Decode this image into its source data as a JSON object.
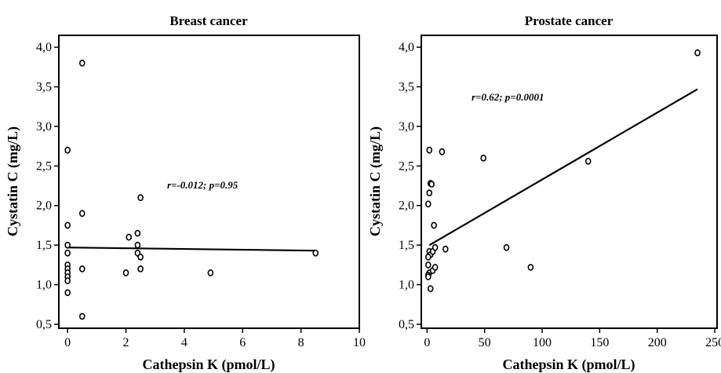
{
  "chart_data": [
    {
      "type": "scatter",
      "title": "Breast cancer",
      "xlabel": "Cathepsin K (pmol/L)",
      "ylabel": "Cystatin C (mg/L)",
      "xlim": [
        -0.3,
        10
      ],
      "ylim": [
        0.45,
        4.15
      ],
      "xticks": [
        0,
        2,
        4,
        6,
        8,
        10
      ],
      "xtick_labels": [
        "0",
        "2",
        "4",
        "6",
        "8",
        "10"
      ],
      "yticks": [
        0.5,
        1.0,
        1.5,
        2.0,
        2.5,
        3.0,
        3.5,
        4.0
      ],
      "ytick_labels": [
        "0,5",
        "1,0",
        "1,5",
        "2,0",
        "2,5",
        "3,0",
        "3,5",
        "4,0"
      ],
      "grid": false,
      "annotation": "r=-0.012; p=0.95",
      "regression": {
        "x": [
          0,
          8.5
        ],
        "y": [
          1.47,
          1.43
        ]
      },
      "points": [
        [
          0,
          2.7
        ],
        [
          0,
          1.75
        ],
        [
          0,
          1.5
        ],
        [
          0,
          1.4
        ],
        [
          0,
          1.25
        ],
        [
          0,
          1.2
        ],
        [
          0,
          1.15
        ],
        [
          0,
          1.1
        ],
        [
          0,
          1.05
        ],
        [
          0,
          0.9
        ],
        [
          0.5,
          3.8
        ],
        [
          0.5,
          1.9
        ],
        [
          0.5,
          1.2
        ],
        [
          0.5,
          0.6
        ],
        [
          2.0,
          1.15
        ],
        [
          2.1,
          1.6
        ],
        [
          2.4,
          1.65
        ],
        [
          2.4,
          1.5
        ],
        [
          2.4,
          1.4
        ],
        [
          2.5,
          2.1
        ],
        [
          2.5,
          1.35
        ],
        [
          2.5,
          1.2
        ],
        [
          4.9,
          1.15
        ],
        [
          8.5,
          1.4
        ]
      ]
    },
    {
      "type": "scatter",
      "title": "Prostate cancer",
      "xlabel": "Cathepsin K (pmol/L)",
      "ylabel": "Cystatin C (mg/L)",
      "xlim": [
        -5,
        252
      ],
      "ylim": [
        0.45,
        4.15
      ],
      "xticks": [
        0,
        50,
        100,
        150,
        200,
        250
      ],
      "xtick_labels": [
        "0",
        "50",
        "100",
        "150",
        "200",
        "250"
      ],
      "yticks": [
        0.5,
        1.0,
        1.5,
        2.0,
        2.5,
        3.0,
        3.5,
        4.0
      ],
      "ytick_labels": [
        "0,5",
        "1,0",
        "1,5",
        "2,0",
        "2,5",
        "3,0",
        "3,5",
        "4,0"
      ],
      "grid": false,
      "annotation": "r=0.62; p=0.0001",
      "regression": {
        "x": [
          2,
          235
        ],
        "y": [
          1.5,
          3.47
        ]
      },
      "points": [
        [
          2,
          2.7
        ],
        [
          3,
          2.28
        ],
        [
          4,
          2.27
        ],
        [
          2,
          2.16
        ],
        [
          1,
          2.02
        ],
        [
          6,
          1.75
        ],
        [
          2,
          1.42
        ],
        [
          3,
          1.38
        ],
        [
          5,
          1.42
        ],
        [
          7,
          1.47
        ],
        [
          1,
          1.35
        ],
        [
          1,
          1.25
        ],
        [
          2,
          1.15
        ],
        [
          1,
          1.12
        ],
        [
          5,
          1.18
        ],
        [
          7,
          1.22
        ],
        [
          3,
          0.95
        ],
        [
          1,
          1.1
        ],
        [
          13,
          2.68
        ],
        [
          16,
          1.45
        ],
        [
          49,
          2.6
        ],
        [
          69,
          1.47
        ],
        [
          90,
          1.22
        ],
        [
          140,
          2.56
        ],
        [
          235,
          3.93
        ]
      ]
    }
  ]
}
